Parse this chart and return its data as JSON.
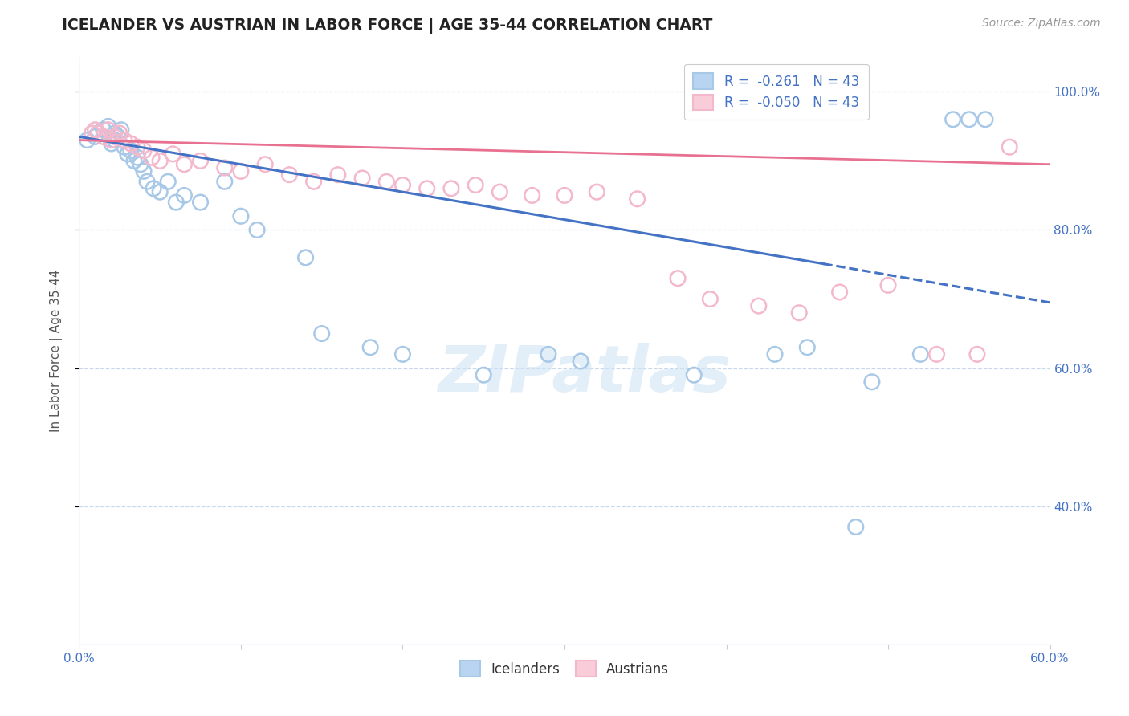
{
  "title": "ICELANDER VS AUSTRIAN IN LABOR FORCE | AGE 35-44 CORRELATION CHART",
  "source": "Source: ZipAtlas.com",
  "ylabel": "In Labor Force | Age 35-44",
  "xlim": [
    0.0,
    0.6
  ],
  "ylim": [
    0.2,
    1.05
  ],
  "blue_color": "#a8c8e8",
  "pink_color": "#f4b8cc",
  "line_blue": "#4472c4",
  "line_pink": "#e87090",
  "legend_R_blue": "-0.261",
  "legend_R_pink": "-0.050",
  "legend_N": "43",
  "watermark": "ZIPatlas",
  "icelanders_x": [
    0.005,
    0.01,
    0.012,
    0.015,
    0.018,
    0.02,
    0.022,
    0.022,
    0.024,
    0.026,
    0.028,
    0.03,
    0.032,
    0.034,
    0.036,
    0.038,
    0.04,
    0.042,
    0.046,
    0.05,
    0.055,
    0.06,
    0.065,
    0.075,
    0.09,
    0.1,
    0.11,
    0.14,
    0.15,
    0.18,
    0.2,
    0.25,
    0.29,
    0.31,
    0.38,
    0.43,
    0.45,
    0.48,
    0.49,
    0.52,
    0.54,
    0.55,
    0.56
  ],
  "icelanders_y": [
    0.93,
    0.935,
    0.94,
    0.945,
    0.95,
    0.925,
    0.93,
    0.94,
    0.935,
    0.945,
    0.92,
    0.91,
    0.915,
    0.9,
    0.905,
    0.895,
    0.885,
    0.87,
    0.86,
    0.855,
    0.87,
    0.84,
    0.85,
    0.84,
    0.87,
    0.82,
    0.8,
    0.76,
    0.65,
    0.63,
    0.62,
    0.59,
    0.62,
    0.61,
    0.59,
    0.62,
    0.63,
    0.37,
    0.58,
    0.62,
    0.96,
    0.96,
    0.96
  ],
  "austrians_x": [
    0.008,
    0.01,
    0.012,
    0.015,
    0.018,
    0.02,
    0.022,
    0.025,
    0.028,
    0.032,
    0.036,
    0.04,
    0.045,
    0.05,
    0.058,
    0.065,
    0.075,
    0.09,
    0.1,
    0.115,
    0.13,
    0.145,
    0.16,
    0.175,
    0.19,
    0.2,
    0.215,
    0.23,
    0.245,
    0.26,
    0.28,
    0.3,
    0.32,
    0.345,
    0.37,
    0.39,
    0.42,
    0.445,
    0.47,
    0.5,
    0.53,
    0.555,
    0.575
  ],
  "austrians_y": [
    0.94,
    0.945,
    0.94,
    0.935,
    0.945,
    0.93,
    0.935,
    0.94,
    0.93,
    0.925,
    0.92,
    0.915,
    0.905,
    0.9,
    0.91,
    0.895,
    0.9,
    0.89,
    0.885,
    0.895,
    0.88,
    0.87,
    0.88,
    0.875,
    0.87,
    0.865,
    0.86,
    0.86,
    0.865,
    0.855,
    0.85,
    0.85,
    0.855,
    0.845,
    0.73,
    0.7,
    0.69,
    0.68,
    0.71,
    0.72,
    0.62,
    0.62,
    0.92
  ]
}
